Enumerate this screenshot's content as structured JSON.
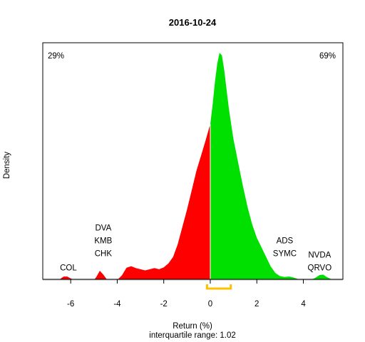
{
  "chart_data": {
    "type": "area",
    "title": "2016-10-24",
    "xlabel": "Return (%)",
    "ylabel": "Density",
    "subtitle": "interquartile range: 1.02",
    "xlim": [
      -7.2,
      5.7
    ],
    "ylim": [
      0,
      0.62
    ],
    "xticks": [
      -6,
      -4,
      -2,
      0,
      2,
      4
    ],
    "negative_share_label": "29%",
    "positive_share_label": "69%",
    "colors": {
      "negative": "#ff0000",
      "positive": "#00e000",
      "iqr": "#ffc000",
      "neg_text": "#e00000",
      "pos_text": "#1a9a1a"
    },
    "iqr": [
      -0.14,
      0.88
    ],
    "density": [
      [
        -6.8,
        0.0
      ],
      [
        -6.5,
        0.0
      ],
      [
        -6.4,
        0.005
      ],
      [
        -6.3,
        0.009
      ],
      [
        -6.15,
        0.009
      ],
      [
        -6.0,
        0.004
      ],
      [
        -5.85,
        0.0
      ],
      [
        -5.0,
        0.0
      ],
      [
        -4.9,
        0.008
      ],
      [
        -4.75,
        0.024
      ],
      [
        -4.6,
        0.014
      ],
      [
        -4.45,
        0.002
      ],
      [
        -4.3,
        0.0
      ],
      [
        -4.0,
        0.0
      ],
      [
        -3.8,
        0.012
      ],
      [
        -3.6,
        0.032
      ],
      [
        -3.4,
        0.036
      ],
      [
        -3.2,
        0.031
      ],
      [
        -3.0,
        0.028
      ],
      [
        -2.8,
        0.025
      ],
      [
        -2.6,
        0.028
      ],
      [
        -2.4,
        0.031
      ],
      [
        -2.2,
        0.028
      ],
      [
        -2.0,
        0.033
      ],
      [
        -1.8,
        0.043
      ],
      [
        -1.6,
        0.06
      ],
      [
        -1.4,
        0.093
      ],
      [
        -1.2,
        0.138
      ],
      [
        -1.0,
        0.183
      ],
      [
        -0.8,
        0.233
      ],
      [
        -0.6,
        0.283
      ],
      [
        -0.4,
        0.323
      ],
      [
        -0.2,
        0.363
      ],
      [
        -0.05,
        0.395
      ],
      [
        0.0,
        0.405
      ],
      [
        0.1,
        0.455
      ],
      [
        0.2,
        0.515
      ],
      [
        0.3,
        0.563
      ],
      [
        0.4,
        0.591
      ],
      [
        0.5,
        0.584
      ],
      [
        0.6,
        0.545
      ],
      [
        0.7,
        0.495
      ],
      [
        0.8,
        0.445
      ],
      [
        0.9,
        0.405
      ],
      [
        1.0,
        0.365
      ],
      [
        1.1,
        0.335
      ],
      [
        1.2,
        0.305
      ],
      [
        1.4,
        0.245
      ],
      [
        1.6,
        0.19
      ],
      [
        1.8,
        0.145
      ],
      [
        2.0,
        0.11
      ],
      [
        2.2,
        0.085
      ],
      [
        2.4,
        0.06
      ],
      [
        2.6,
        0.035
      ],
      [
        2.8,
        0.018
      ],
      [
        3.0,
        0.01
      ],
      [
        3.2,
        0.008
      ],
      [
        3.4,
        0.009
      ],
      [
        3.6,
        0.006
      ],
      [
        3.8,
        0.002
      ],
      [
        4.0,
        0.0
      ],
      [
        4.3,
        0.0
      ],
      [
        4.5,
        0.005
      ],
      [
        4.7,
        0.013
      ],
      [
        4.85,
        0.014
      ],
      [
        5.0,
        0.008
      ],
      [
        5.2,
        0.002
      ],
      [
        5.4,
        0.0
      ]
    ],
    "annotations": [
      {
        "x": -6.1,
        "y": 0.04,
        "lines": [
          "COL"
        ]
      },
      {
        "x": -4.6,
        "y": 0.077,
        "lines": [
          "DVA",
          "KMB",
          "CHK"
        ]
      },
      {
        "x": 3.2,
        "y": 0.077,
        "lines": [
          "ADS",
          "SYMC"
        ]
      },
      {
        "x": 4.7,
        "y": 0.04,
        "lines": [
          "NVDA",
          "QRVO"
        ]
      }
    ]
  }
}
